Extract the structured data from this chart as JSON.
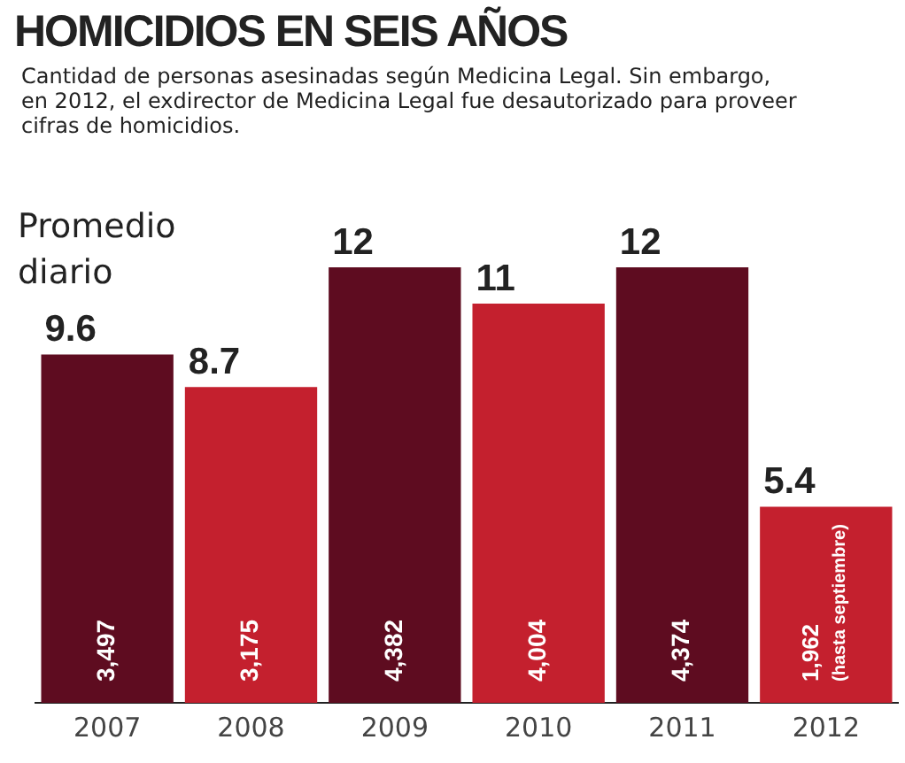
{
  "chart_data": {
    "type": "bar",
    "title": "HOMICIDIOS EN SEIS AÑOS",
    "subtitle": "Cantidad de personas asesinadas según Medicina Legal. Sin embargo, en 2012, el exdirector de Medicina Legal fue desautorizado para proveer cifras de homicidios.",
    "ylabel": "Promedio diario",
    "categories": [
      "2007",
      "2008",
      "2009",
      "2010",
      "2011",
      "2012"
    ],
    "values": [
      9.6,
      8.7,
      12,
      11,
      12,
      5.4
    ],
    "colors": [
      "#5e0c20",
      "#c4202e",
      "#5e0c20",
      "#c4202e",
      "#5e0c20",
      "#c4202e"
    ],
    "data_labels": true,
    "tick_labels": "x",
    "grid": false,
    "annotations": [
      "3,497",
      "3,175",
      "4,382",
      "4,004",
      "4,374",
      "1,962 (hasta septiembre)"
    ]
  }
}
